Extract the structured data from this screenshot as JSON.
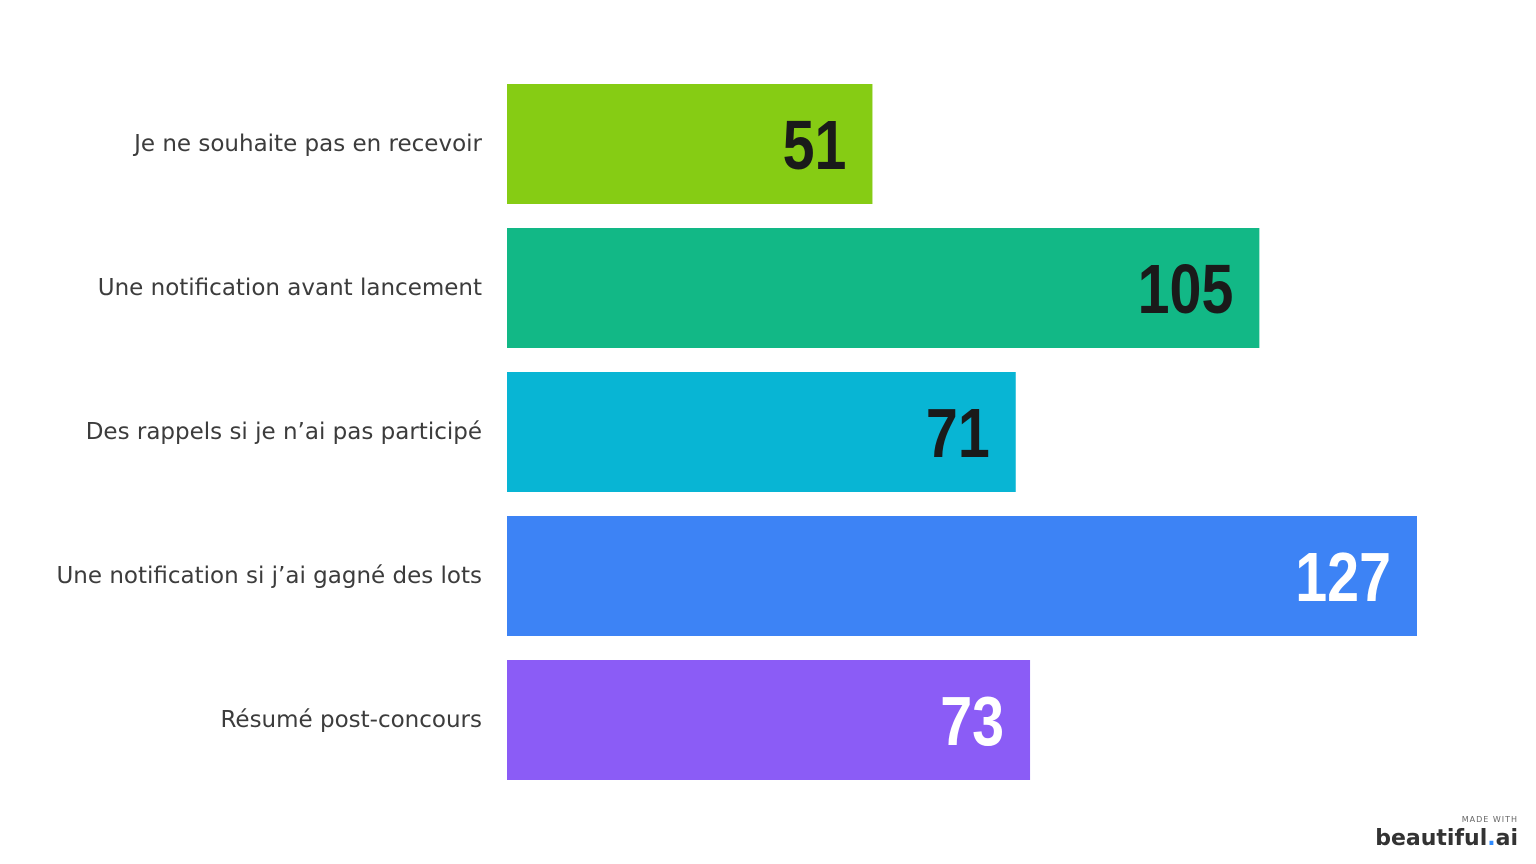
{
  "chart_data": {
    "type": "bar",
    "orientation": "horizontal",
    "categories": [
      "Je ne souhaite pas en recevoir",
      "Une notification avant lancement",
      "Des rappels si je n’ai pas participé",
      "Une notification si j’ai gagné des lots",
      "Résumé post-concours"
    ],
    "values": [
      51,
      105,
      71,
      127,
      73
    ],
    "colors": [
      "#86cc14",
      "#12b886",
      "#08b5d4",
      "#3d83f5",
      "#8b5cf6"
    ],
    "value_label_colors": [
      "#1a1a1a",
      "#1a1a1a",
      "#1a1a1a",
      "#ffffff",
      "#ffffff"
    ],
    "xlim": [
      0,
      127
    ],
    "grid": false,
    "title": "",
    "xlabel": "",
    "ylabel": ""
  },
  "watermark": {
    "small": "MADE WITH",
    "brand": "beautiful",
    "dot": ".",
    "suffix": "ai"
  }
}
